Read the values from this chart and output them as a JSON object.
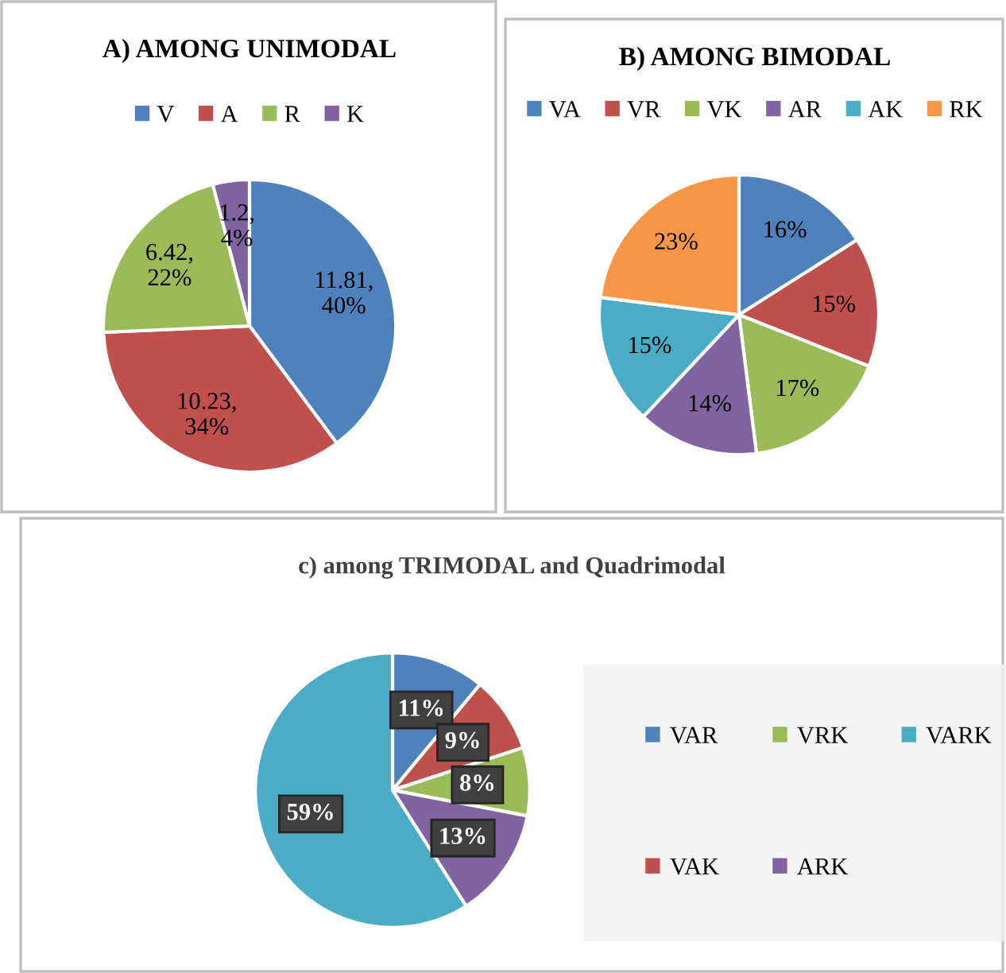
{
  "chart_data": [
    {
      "type": "pie",
      "title": "A) AMONG UNIMODAL",
      "categories": [
        "V",
        "A",
        "R",
        "K"
      ],
      "values": [
        11.81,
        10.23,
        6.42,
        1.2
      ],
      "colors": [
        "#4f81bd",
        "#c0504d",
        "#9bbb59",
        "#8064a2"
      ],
      "value_labels": [
        "11.81,\n40%",
        "10.23,\n34%",
        "6.42,\n22%",
        "1.2,\n4%"
      ],
      "legend": "top"
    },
    {
      "type": "pie",
      "title": "B) AMONG BIMODAL",
      "categories": [
        "VA",
        "VR",
        "VK",
        "AR",
        "AK",
        "RK"
      ],
      "values": [
        16,
        15,
        17,
        14,
        15,
        23
      ],
      "colors": [
        "#4f81bd",
        "#c0504d",
        "#9bbb59",
        "#8064a2",
        "#4bacc6",
        "#f79646"
      ],
      "value_labels": [
        "16%",
        "15%",
        "17%",
        "14%",
        "15%",
        "23%"
      ],
      "legend": "top"
    },
    {
      "type": "pie",
      "title": "c) among TRIMODAL and Quadrimodal",
      "categories": [
        "VAR",
        "VAK",
        "VRK",
        "ARK",
        "VARK"
      ],
      "values": [
        11,
        9,
        8,
        13,
        59
      ],
      "colors": [
        "#4f81bd",
        "#c0504d",
        "#9bbb59",
        "#8064a2",
        "#4bacc6"
      ],
      "value_labels": [
        "11%",
        "9%",
        "8%",
        "13%",
        "59%"
      ],
      "legend": "right"
    }
  ]
}
